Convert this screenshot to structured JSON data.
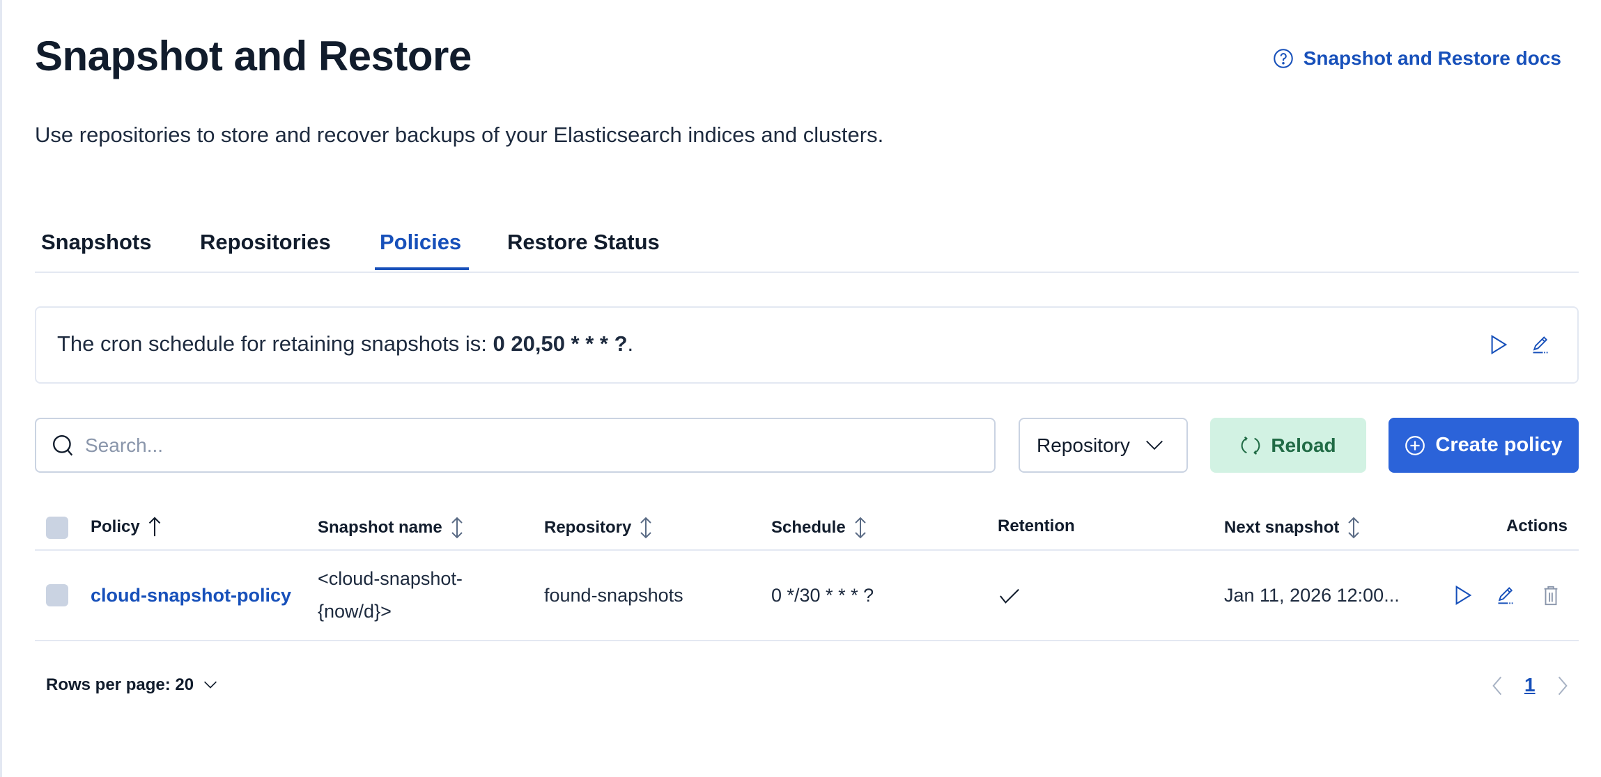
{
  "page": {
    "title": "Snapshot and Restore",
    "docs_link": "Snapshot and Restore docs",
    "description": "Use repositories to store and recover backups of your Elasticsearch indices and clusters."
  },
  "tabs": [
    {
      "label": "Snapshots",
      "active": false
    },
    {
      "label": "Repositories",
      "active": false
    },
    {
      "label": "Policies",
      "active": true
    },
    {
      "label": "Restore Status",
      "active": false
    }
  ],
  "cron_callout": {
    "prefix": "The cron schedule for retaining snapshots is: ",
    "schedule": "0 20,50 * * * ?",
    "suffix": "."
  },
  "toolbar": {
    "search_placeholder": "Search...",
    "search_value": "",
    "repository_filter": "Repository",
    "reload_label": "Reload",
    "create_label": "Create policy"
  },
  "table": {
    "columns": [
      "Policy",
      "Snapshot name",
      "Repository",
      "Schedule",
      "Retention",
      "Next snapshot",
      "Actions"
    ],
    "sort": {
      "column": "Policy",
      "direction": "ascending"
    },
    "rows": [
      {
        "policy": "cloud-snapshot-policy",
        "snapshot_name_line1": "<cloud-snapshot-",
        "snapshot_name_line2": "{now/d}>",
        "repository": "found-snapshots",
        "schedule": "0 */30 * * * ?",
        "retention": true,
        "next_snapshot": "Jan 11, 2026 12:00..."
      }
    ]
  },
  "pagination": {
    "rows_per_page": "Rows per page: 20",
    "current_page": "1"
  },
  "colors": {
    "text": "#111c2c",
    "link": "#1750ba",
    "primary": "#2b63d9",
    "success_bg": "#d2f2e3",
    "success_text": "#206b45",
    "border": "#e3e8f2"
  }
}
